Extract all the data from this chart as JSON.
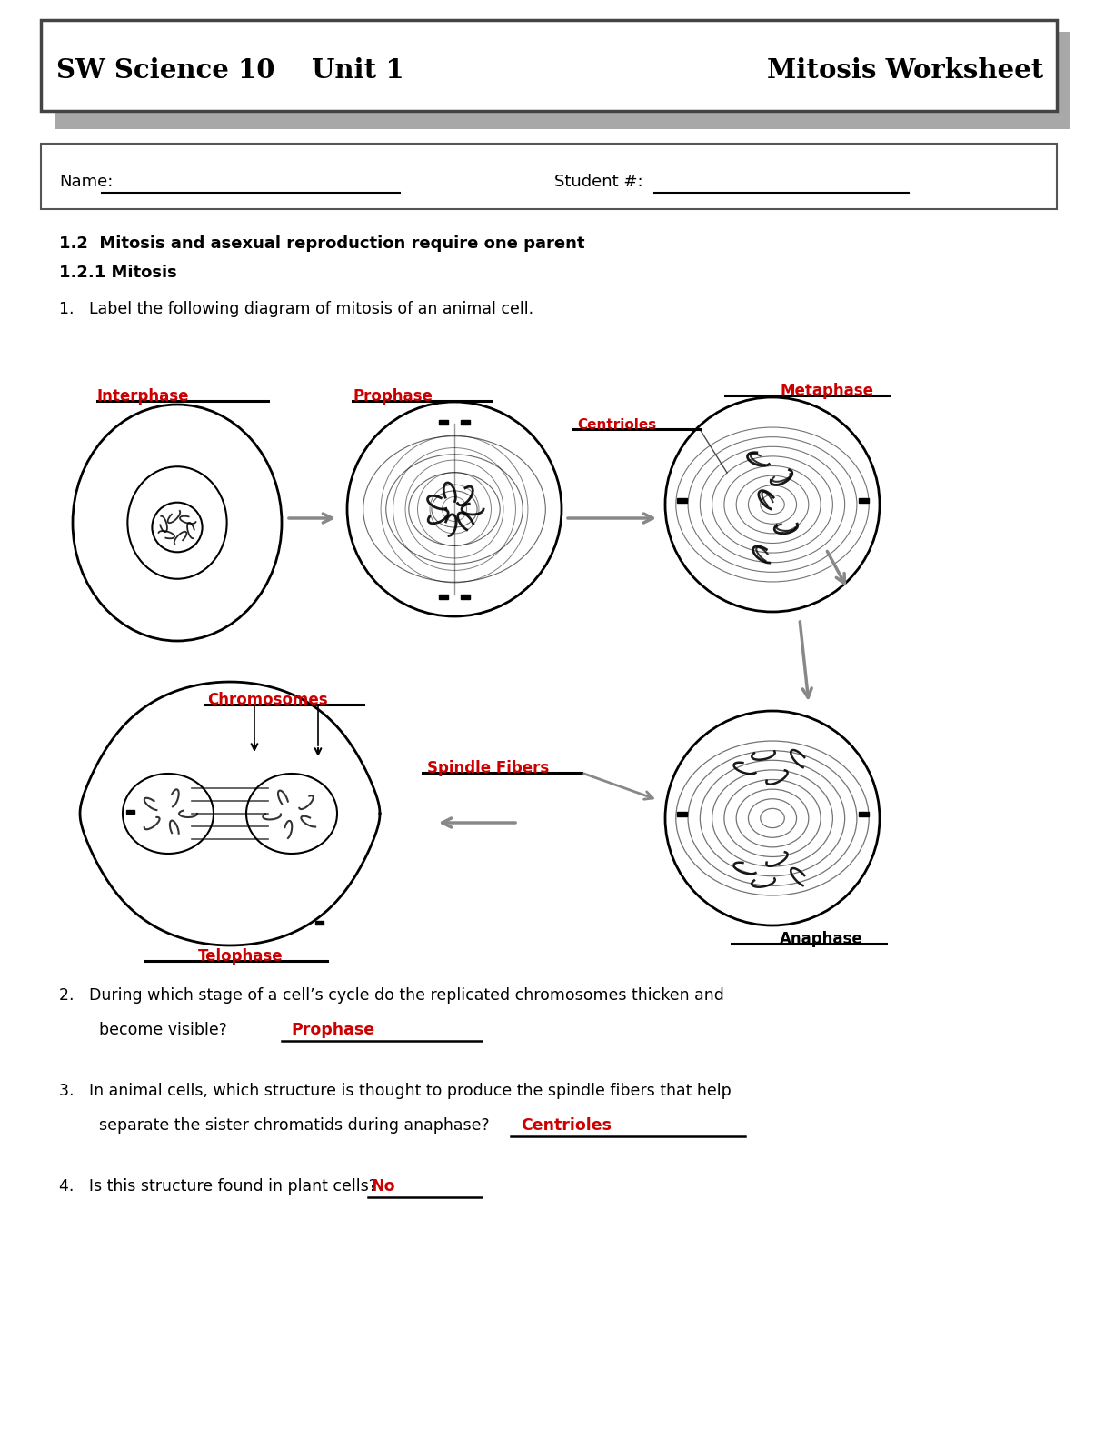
{
  "title_left": "SW Science 10    Unit 1",
  "title_right": "Mitosis Worksheet",
  "name_label": "Name:",
  "student_label": "Student #:",
  "section_header1": "1.2  Mitosis and asexual reproduction require one parent",
  "section_header2": "1.2.1 Mitosis",
  "q1_text": "1.   Label the following diagram of mitosis of an animal cell.",
  "q2_text1": "2.   During which stage of a cell’s cycle do the replicated chromosomes thicken and",
  "q2_text2": "        become visible?",
  "q2_answer": "Prophase",
  "q3_text1": "3.   In animal cells, which structure is thought to produce the spindle fibers that help",
  "q3_text2": "        separate the sister chromatids during anaphase?",
  "q3_answer": "Centrioles",
  "q4_text": "4.   Is this structure found in plant cells?",
  "q4_answer": "No",
  "label_interphase": "Interphase",
  "label_prophase": "Prophase",
  "label_metaphase": "Metaphase",
  "label_centrioles": "Centrioles",
  "label_chromosomes": "Chromosomes",
  "label_spindle": "Spindle Fibers",
  "label_telophase": "Telophase",
  "label_anaphase": "Anaphase",
  "answer_color": "#cc0000",
  "text_color": "#000000",
  "label_color": "#cc0000",
  "bg_color": "#ffffff"
}
